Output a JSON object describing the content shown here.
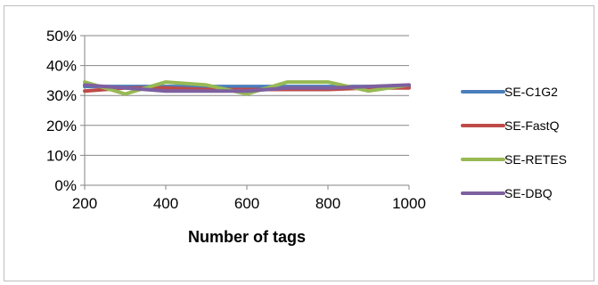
{
  "chart_data": {
    "type": "line",
    "title": "",
    "xlabel": "Number of tags",
    "ylabel": "",
    "x": [
      200,
      300,
      400,
      500,
      600,
      700,
      800,
      900,
      1000
    ],
    "xticks": [
      "200",
      "400",
      "600",
      "800",
      "1000"
    ],
    "xtick_values": [
      200,
      400,
      600,
      800,
      1000
    ],
    "xlim": [
      200,
      1000
    ],
    "yticks": [
      "0%",
      "10%",
      "20%",
      "30%",
      "40%",
      "50%"
    ],
    "ytick_values": [
      0,
      10,
      20,
      30,
      40,
      50
    ],
    "ylim": [
      0,
      50
    ],
    "y_unit": "%",
    "grid": "horizontal",
    "legend_position": "right",
    "series": [
      {
        "name": "SE-C1G2",
        "color": "#4a7ebb",
        "values": [
          33,
          33,
          33,
          33,
          33,
          33,
          33,
          33,
          33
        ]
      },
      {
        "name": "SE-FastQ",
        "color": "#be4b48",
        "values": [
          31.5,
          32.5,
          32.5,
          32,
          32,
          32,
          32,
          32.5,
          32.5
        ]
      },
      {
        "name": "SE-RETES",
        "color": "#98b954",
        "values": [
          34.5,
          30.5,
          34.5,
          33.5,
          30.5,
          34.5,
          34.5,
          31.5,
          33.5
        ]
      },
      {
        "name": "SE-DBQ",
        "color": "#7d60a0",
        "values": [
          33.5,
          32.5,
          31.5,
          31.5,
          31.5,
          32.5,
          32.5,
          33,
          33.5
        ]
      }
    ]
  }
}
